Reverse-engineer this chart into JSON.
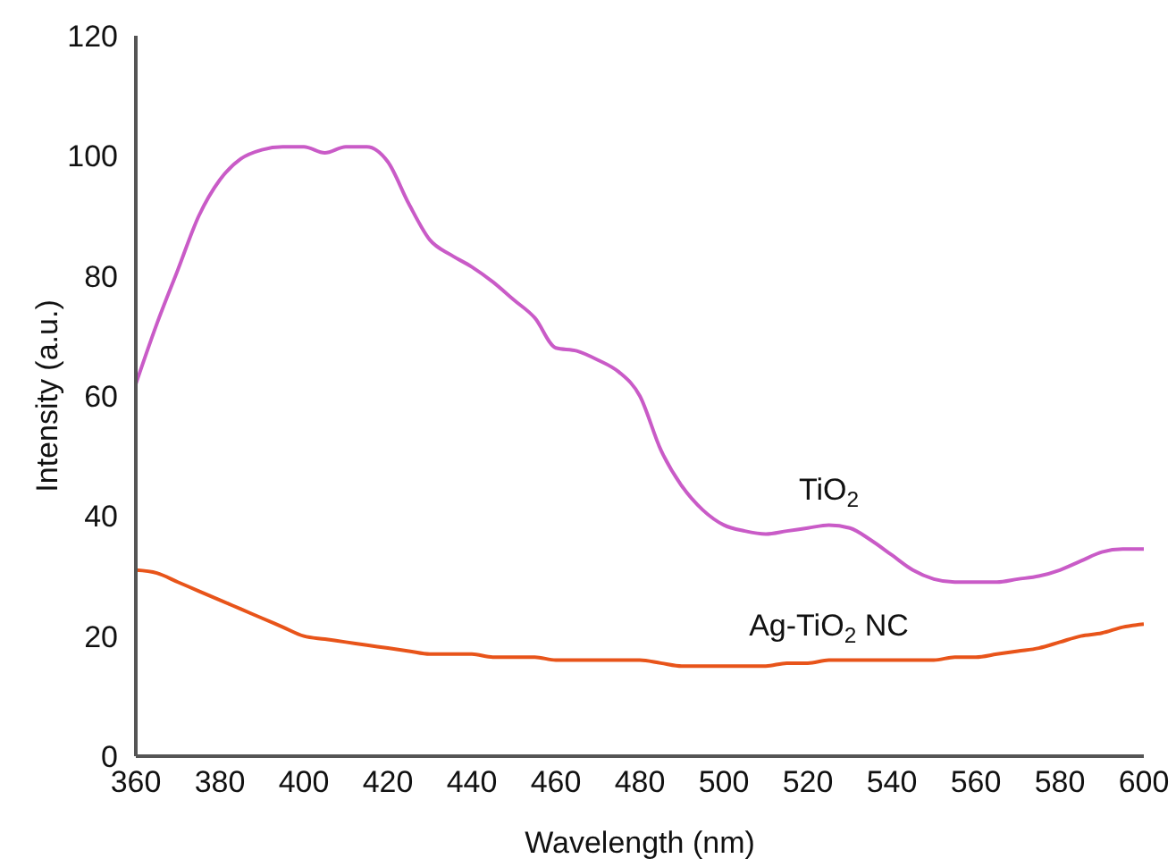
{
  "chart_data": {
    "type": "line",
    "xlabel": "Wavelength (nm)",
    "ylabel": "Intensity (a.u.)",
    "x": [
      360,
      365,
      370,
      375,
      380,
      385,
      390,
      395,
      400,
      405,
      410,
      415,
      420,
      425,
      430,
      435,
      440,
      445,
      450,
      455,
      460,
      465,
      470,
      475,
      480,
      485,
      490,
      495,
      500,
      505,
      510,
      515,
      520,
      525,
      530,
      535,
      540,
      545,
      550,
      555,
      560,
      565,
      570,
      575,
      580,
      585,
      590,
      595,
      600
    ],
    "series": [
      {
        "name": "TiO$_{2}$",
        "color": "#c95bc7",
        "values": [
          62,
          72,
          81,
          90,
          96,
          99.5,
          101,
          101.5,
          101.5,
          100.5,
          101.5,
          101.5,
          99,
          92,
          86,
          83.5,
          81.5,
          79,
          76,
          73,
          68,
          67.5,
          66,
          64,
          60,
          51,
          45,
          41,
          38.5,
          37.5,
          37,
          37.5,
          38,
          38.5,
          38,
          36,
          33.5,
          31,
          29.5,
          29,
          29,
          29,
          29.5,
          30,
          31,
          32.5,
          34,
          34.5,
          34.5
        ]
      },
      {
        "name": "Ag-TiO$_{2}$ NC",
        "color": "#e8541a",
        "values": [
          31,
          30.5,
          29,
          27.5,
          26,
          24.5,
          23,
          21.5,
          20,
          19.5,
          19,
          18.5,
          18,
          17.5,
          17,
          17,
          17,
          16.5,
          16.5,
          16.5,
          16,
          16,
          16,
          16,
          16,
          15.5,
          15,
          15,
          15,
          15,
          15,
          15.5,
          15.5,
          16,
          16,
          16,
          16,
          16,
          16,
          16.5,
          16.5,
          17,
          17.5,
          18,
          19,
          20,
          20.5,
          21.5,
          22
        ]
      }
    ],
    "xlim": [
      360,
      600
    ],
    "xticks": [
      360,
      380,
      400,
      420,
      440,
      460,
      480,
      500,
      520,
      540,
      560,
      580,
      600
    ],
    "ylim": [
      0,
      120
    ],
    "yticks": [
      0,
      20,
      40,
      60,
      80,
      100,
      120
    ],
    "grid": false,
    "legend": false,
    "marker": "none",
    "line_style": "solid"
  }
}
